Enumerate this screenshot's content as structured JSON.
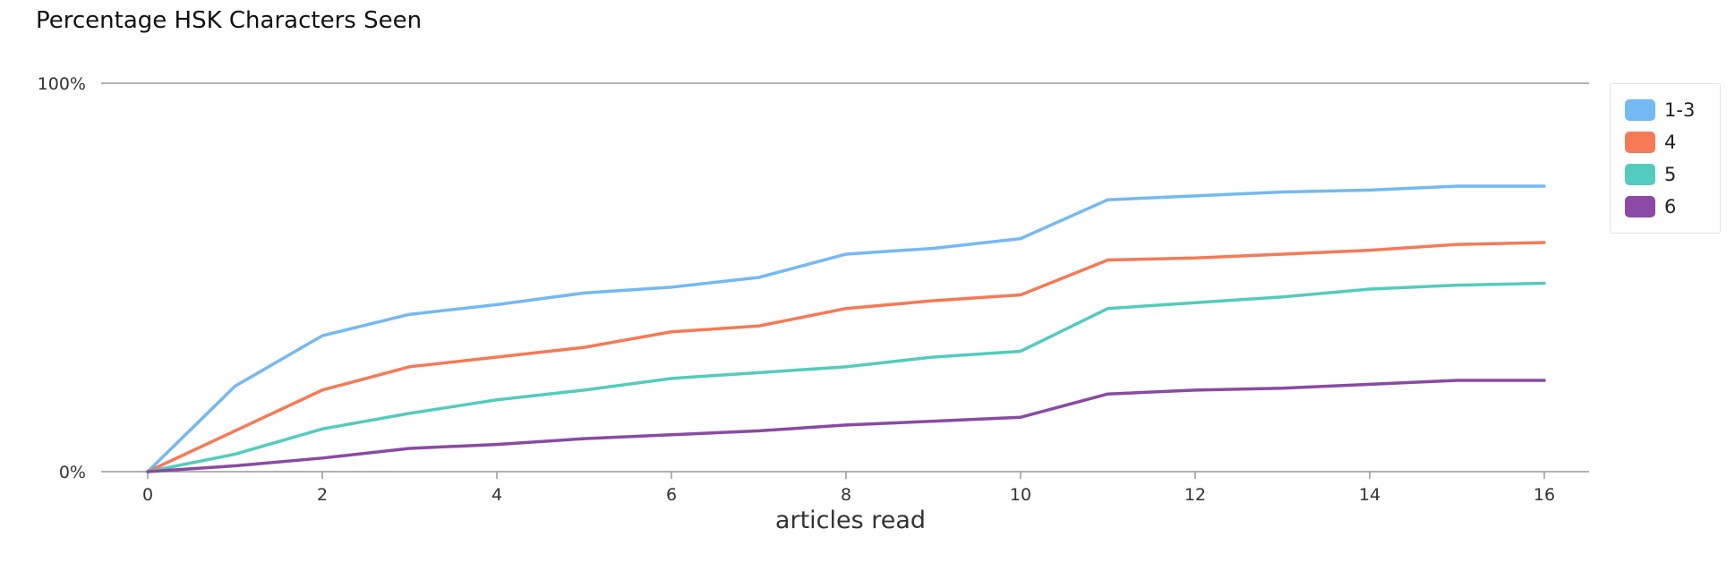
{
  "chart_data": {
    "type": "line",
    "title": "Percentage HSK Characters Seen",
    "xlabel": "articles read",
    "ylabel": "",
    "x": [
      0,
      1,
      2,
      3,
      4,
      5,
      6,
      7,
      8,
      9,
      10,
      11,
      12,
      13,
      14,
      15,
      16
    ],
    "xticks": [
      "0",
      "2",
      "4",
      "6",
      "8",
      "10",
      "12",
      "14",
      "16"
    ],
    "xtick_values": [
      0,
      2,
      4,
      6,
      8,
      10,
      12,
      14,
      16
    ],
    "yticks": [
      "0%",
      "100%"
    ],
    "ytick_values": [
      0,
      100
    ],
    "xlim": [
      0,
      16
    ],
    "ylim": [
      0,
      100
    ],
    "legend_position": "top-right",
    "grid": false,
    "series": [
      {
        "name": "1-3",
        "color": "#74b9f3",
        "values": [
          0,
          22,
          35,
          40.5,
          43,
          46,
          47.5,
          50,
          56,
          57.5,
          60,
          70,
          71,
          72,
          72.5,
          73.5,
          73.5
        ]
      },
      {
        "name": "4",
        "color": "#f57a55",
        "values": [
          0,
          10.5,
          21,
          27,
          29.5,
          32,
          36,
          37.5,
          42,
          44,
          45.5,
          54.5,
          55,
          56,
          57,
          58.5,
          59
        ]
      },
      {
        "name": "5",
        "color": "#54cbbf",
        "values": [
          0,
          4.5,
          11,
          15,
          18.5,
          21,
          24,
          25.5,
          27,
          29.5,
          31,
          42,
          43.5,
          45,
          47,
          48,
          48.5
        ]
      },
      {
        "name": "6",
        "color": "#8a4aa5",
        "values": [
          0,
          1.5,
          3.5,
          6,
          7,
          8.5,
          9.5,
          10.5,
          12,
          13,
          14,
          20,
          21,
          21.5,
          22.5,
          23.5,
          23.5
        ]
      }
    ]
  }
}
